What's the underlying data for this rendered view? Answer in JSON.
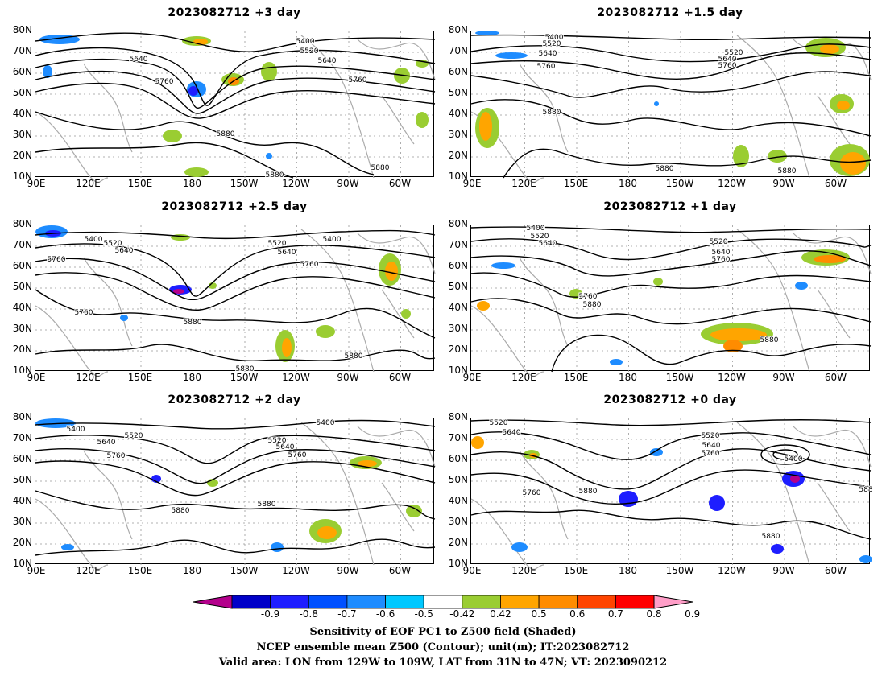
{
  "panels": [
    {
      "id": "p1",
      "title": "2023082712 +3 day",
      "contour_labels": [
        "5400",
        "5520",
        "5640",
        "5640",
        "5760",
        "5760",
        "5880",
        "5880",
        "5880"
      ]
    },
    {
      "id": "p2",
      "title": "2023082712 +1.5 day",
      "contour_labels": [
        "5400",
        "5520",
        "5640",
        "5520",
        "5640",
        "5760",
        "5760",
        "5880",
        "5880",
        "5880"
      ]
    },
    {
      "id": "p3",
      "title": "2023082712 +2.5 day",
      "contour_labels": [
        "5400",
        "5520",
        "5640",
        "5760",
        "5520",
        "5640",
        "5400",
        "5760",
        "5760",
        "5880",
        "5880",
        "5880"
      ]
    },
    {
      "id": "p4",
      "title": "2023082712 +1 day",
      "contour_labels": [
        "5400",
        "5520",
        "5640",
        "5520",
        "5640",
        "5760",
        "5760",
        "5880",
        "5880"
      ]
    },
    {
      "id": "p5",
      "title": "2023082712 +2 day",
      "contour_labels": [
        "5400",
        "5520",
        "5640",
        "5760",
        "5520",
        "5640",
        "5400",
        "5760",
        "5880",
        "5880"
      ]
    },
    {
      "id": "p6",
      "title": "2023082712 +0 day",
      "contour_labels": [
        "5520",
        "5640",
        "5520",
        "5640",
        "5760",
        "5400",
        "5760",
        "5880",
        "5880",
        "588"
      ]
    }
  ],
  "axes": {
    "lat_labels": [
      "80N",
      "70N",
      "60N",
      "50N",
      "40N",
      "30N",
      "20N",
      "10N"
    ],
    "lon_labels": [
      "90E",
      "120E",
      "150E",
      "180",
      "150W",
      "120W",
      "90W",
      "60W"
    ]
  },
  "colorbar": {
    "ticks": [
      "-0.9",
      "-0.8",
      "-0.7",
      "-0.6",
      "-0.5",
      "-0.42",
      "0.42",
      "0.5",
      "0.6",
      "0.7",
      "0.8",
      "0.9"
    ],
    "colors": [
      "#b4008c",
      "#0000c8",
      "#1e1eff",
      "#0050ff",
      "#1e8cff",
      "#00c8ff",
      "#ffffff",
      "#9acd32",
      "#ffa500",
      "#ff8c00",
      "#ff4500",
      "#ff0000",
      "#ff9ec8"
    ]
  },
  "captions": {
    "line1": "Sensitivity of EOF PC1 to Z500 field (Shaded)",
    "line2": "NCEP ensemble mean Z500 (Contour); unit(m); IT:2023082712",
    "line3": "Valid area: LON from 129W to 109W, LAT from 31N to 47N; VT: 2023090212"
  }
}
